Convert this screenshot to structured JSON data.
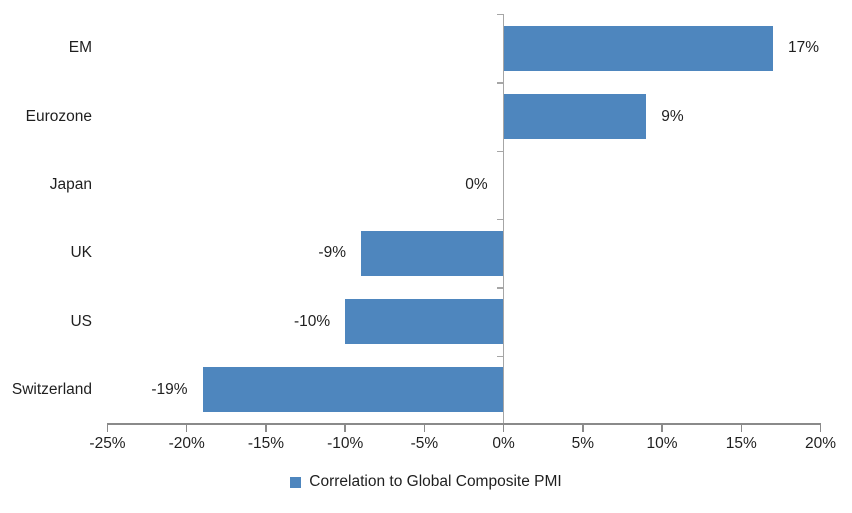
{
  "chart_data": {
    "type": "bar",
    "orientation": "horizontal",
    "title": "",
    "categories": [
      "EM",
      "Eurozone",
      "Japan",
      "UK",
      "US",
      "Switzerland"
    ],
    "values": [
      17,
      9,
      0,
      -9,
      -10,
      -19
    ],
    "data_labels": [
      "17%",
      "9%",
      "0%",
      "-9%",
      "-10%",
      "-19%"
    ],
    "series": [
      {
        "name": "Correlation to Global Composite PMI",
        "values": [
          17,
          9,
          0,
          -9,
          -10,
          -19
        ]
      }
    ],
    "legend": {
      "label": "Correlation to Global Composite PMI",
      "position": "bottom",
      "marker": "square"
    },
    "x_axis": {
      "range": [
        -25,
        20
      ],
      "ticks": [
        -25,
        -20,
        -15,
        -10,
        -5,
        0,
        5,
        10,
        15,
        20
      ],
      "tick_labels": [
        "-25%",
        "-20%",
        "-15%",
        "-10%",
        "-5%",
        "0%",
        "5%",
        "10%",
        "15%",
        "20%"
      ],
      "grid": false
    },
    "colors": {
      "bar": "#4E86BE",
      "value_axis": "#8A8A8A",
      "category_axis": "#A6A6A6",
      "text": "#1F1F1F",
      "background": "#FFFFFF"
    }
  }
}
